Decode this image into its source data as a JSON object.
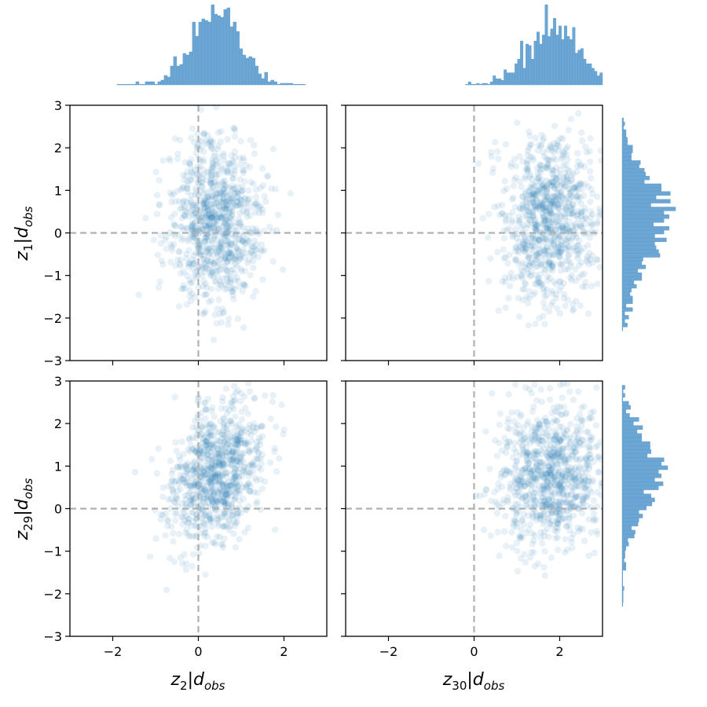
{
  "chart_data": [
    {
      "type": "scatter",
      "panel": "top-left",
      "xlim": [
        -3,
        3
      ],
      "ylim": [
        -3,
        3
      ],
      "x_ticks": [
        -2,
        0,
        2
      ],
      "y_ticks": [
        -3,
        -2,
        -1,
        0,
        1,
        2,
        3
      ],
      "x_tick_labels": [
        "",
        "",
        ""
      ],
      "y_tick_labels": [
        "−3",
        "−2",
        "−1",
        "0",
        "1",
        "2",
        "3"
      ],
      "reference_lines": {
        "x": 0,
        "y": 0,
        "style": "dashed",
        "color": "#b0b0b0"
      },
      "point_color": "#1f77b4",
      "point_alpha": 0.1,
      "n_points": 900,
      "x_mean": 0.4,
      "x_sd": 0.55,
      "y_mean": 0.3,
      "y_sd": 0.95,
      "correlation": 0.0,
      "grid": false
    },
    {
      "type": "scatter",
      "panel": "top-right",
      "xlim": [
        -3,
        3
      ],
      "ylim": [
        -3,
        3
      ],
      "x_ticks": [
        -2,
        0,
        2
      ],
      "y_ticks": [
        -3,
        -2,
        -1,
        0,
        1,
        2,
        3
      ],
      "x_tick_labels": [
        "",
        "",
        ""
      ],
      "y_tick_labels": [
        "",
        "",
        "",
        "",
        "",
        "",
        ""
      ],
      "reference_lines": {
        "x": 0,
        "y": 0,
        "style": "dashed",
        "color": "#b0b0b0"
      },
      "point_color": "#1f77b4",
      "point_alpha": 0.1,
      "n_points": 900,
      "x_mean": 1.8,
      "x_sd": 0.6,
      "y_mean": 0.3,
      "y_sd": 0.95,
      "correlation": 0.0,
      "grid": false
    },
    {
      "type": "scatter",
      "panel": "bottom-left",
      "xlim": [
        -3,
        3
      ],
      "ylim": [
        -3,
        3
      ],
      "x_ticks": [
        -2,
        0,
        2
      ],
      "y_ticks": [
        -3,
        -2,
        -1,
        0,
        1,
        2,
        3
      ],
      "x_tick_labels": [
        "−2",
        "0",
        "2"
      ],
      "y_tick_labels": [
        "−3",
        "−2",
        "−1",
        "0",
        "1",
        "2",
        "3"
      ],
      "reference_lines": {
        "x": 0,
        "y": 0,
        "style": "dashed",
        "color": "#b0b0b0"
      },
      "point_color": "#1f77b4",
      "point_alpha": 0.1,
      "n_points": 900,
      "x_mean": 0.4,
      "x_sd": 0.55,
      "y_mean": 0.8,
      "y_sd": 0.85,
      "correlation": 0.35,
      "grid": false
    },
    {
      "type": "scatter",
      "panel": "bottom-right",
      "xlim": [
        -3,
        3
      ],
      "ylim": [
        -3,
        3
      ],
      "x_ticks": [
        -2,
        0,
        2
      ],
      "y_ticks": [
        -3,
        -2,
        -1,
        0,
        1,
        2,
        3
      ],
      "x_tick_labels": [
        "−2",
        "0",
        "2"
      ],
      "y_tick_labels": [
        "",
        "",
        "",
        "",
        "",
        "",
        ""
      ],
      "reference_lines": {
        "x": 0,
        "y": 0,
        "style": "dashed",
        "color": "#b0b0b0"
      },
      "point_color": "#1f77b4",
      "point_alpha": 0.1,
      "n_points": 900,
      "x_mean": 1.8,
      "x_sd": 0.6,
      "y_mean": 0.8,
      "y_sd": 0.85,
      "correlation": 0.0,
      "grid": false
    },
    {
      "type": "bar",
      "panel": "marginal-top-z2",
      "orientation": "vertical",
      "variable": "z2",
      "range": [
        -1.9,
        2.5
      ],
      "bins": 60,
      "color": "#6ca6d4",
      "distribution_mean": 0.4,
      "distribution_sd": 0.55
    },
    {
      "type": "bar",
      "panel": "marginal-top-z30",
      "orientation": "vertical",
      "variable": "z30",
      "range": [
        -0.2,
        3.0
      ],
      "bins": 50,
      "color": "#6ca6d4",
      "distribution_mean": 1.8,
      "distribution_sd": 0.6
    },
    {
      "type": "bar",
      "panel": "marginal-right-z1",
      "orientation": "horizontal",
      "variable": "z1",
      "range": [
        -2.3,
        2.7
      ],
      "bins": 55,
      "color": "#6ca6d4",
      "distribution_mean": 0.3,
      "distribution_sd": 0.95
    },
    {
      "type": "bar",
      "panel": "marginal-right-z29",
      "orientation": "horizontal",
      "variable": "z29",
      "range": [
        -2.3,
        2.9
      ],
      "bins": 55,
      "color": "#6ca6d4",
      "distribution_mean": 0.8,
      "distribution_sd": 0.85
    }
  ],
  "labels": {
    "ylabel_top": {
      "base": "z",
      "sub": "1",
      "cond": "d",
      "csub": "obs"
    },
    "ylabel_bottom": {
      "base": "z",
      "sub": "29",
      "cond": "d",
      "csub": "obs"
    },
    "xlabel_left": {
      "base": "z",
      "sub": "2",
      "cond": "d",
      "csub": "obs"
    },
    "xlabel_right": {
      "base": "z",
      "sub": "30",
      "cond": "d",
      "csub": "obs"
    }
  }
}
